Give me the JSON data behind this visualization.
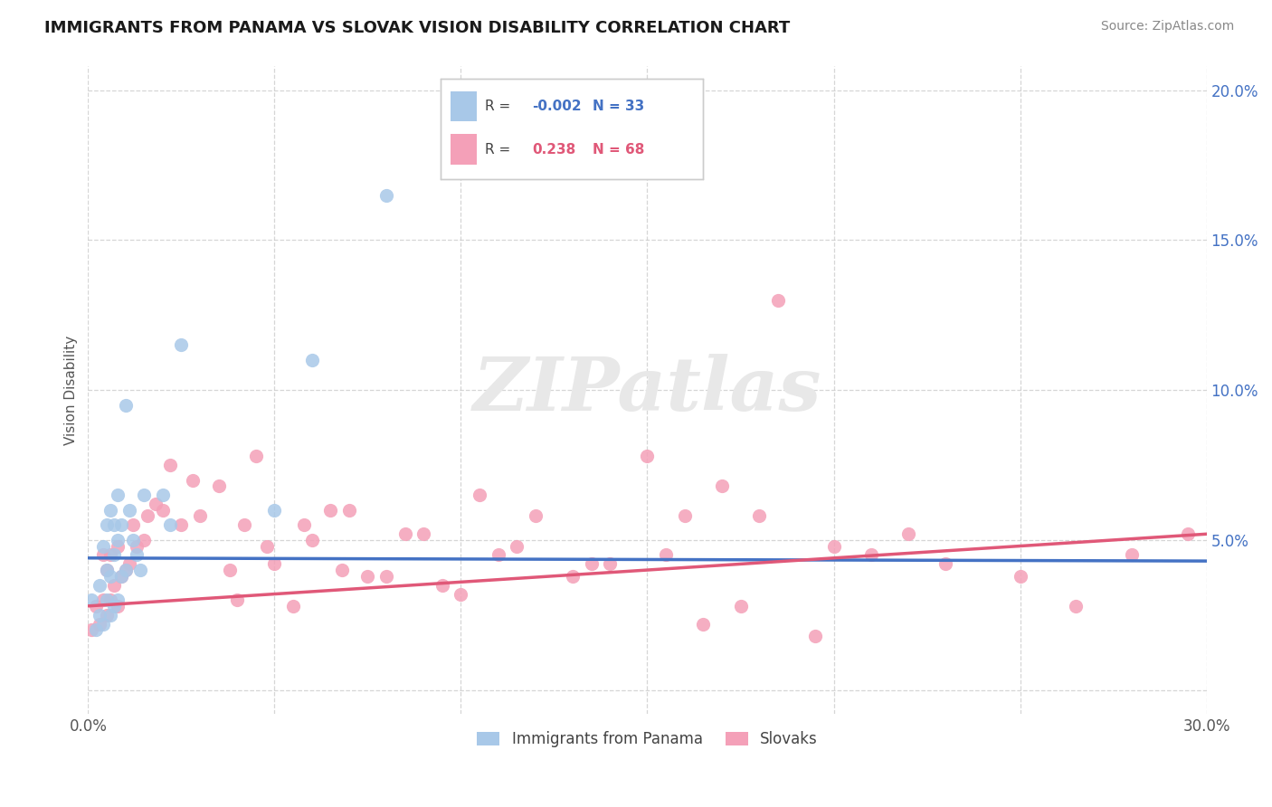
{
  "title": "IMMIGRANTS FROM PANAMA VS SLOVAK VISION DISABILITY CORRELATION CHART",
  "source_text": "Source: ZipAtlas.com",
  "ylabel_label": "Vision Disability",
  "xmin": 0.0,
  "xmax": 0.3,
  "ymin": -0.008,
  "ymax": 0.208,
  "x_ticks": [
    0.0,
    0.05,
    0.1,
    0.15,
    0.2,
    0.25,
    0.3
  ],
  "y_ticks": [
    0.0,
    0.05,
    0.1,
    0.15,
    0.2
  ],
  "legend_R1": "-0.002",
  "legend_N1": "33",
  "legend_R2": "0.238",
  "legend_N2": "68",
  "blue_color": "#a8c8e8",
  "pink_color": "#f4a0b8",
  "blue_line_color": "#4472c4",
  "pink_line_color": "#e05878",
  "blue_line_y0": 0.044,
  "blue_line_y1": 0.043,
  "pink_line_y0": 0.028,
  "pink_line_y1": 0.052,
  "panama_points_x": [
    0.001,
    0.002,
    0.003,
    0.003,
    0.004,
    0.004,
    0.005,
    0.005,
    0.005,
    0.006,
    0.006,
    0.006,
    0.007,
    0.007,
    0.007,
    0.008,
    0.008,
    0.008,
    0.009,
    0.009,
    0.01,
    0.01,
    0.011,
    0.012,
    0.013,
    0.014,
    0.015,
    0.02,
    0.022,
    0.025,
    0.05,
    0.06,
    0.08
  ],
  "panama_points_y": [
    0.03,
    0.02,
    0.025,
    0.035,
    0.022,
    0.048,
    0.03,
    0.04,
    0.055,
    0.025,
    0.038,
    0.06,
    0.028,
    0.045,
    0.055,
    0.03,
    0.05,
    0.065,
    0.038,
    0.055,
    0.04,
    0.095,
    0.06,
    0.05,
    0.045,
    0.04,
    0.065,
    0.065,
    0.055,
    0.115,
    0.06,
    0.11,
    0.165
  ],
  "slovak_points_x": [
    0.001,
    0.002,
    0.003,
    0.004,
    0.004,
    0.005,
    0.005,
    0.006,
    0.006,
    0.007,
    0.008,
    0.008,
    0.009,
    0.01,
    0.011,
    0.012,
    0.013,
    0.015,
    0.016,
    0.018,
    0.02,
    0.022,
    0.025,
    0.028,
    0.03,
    0.035,
    0.038,
    0.04,
    0.042,
    0.045,
    0.048,
    0.05,
    0.055,
    0.058,
    0.06,
    0.065,
    0.068,
    0.07,
    0.075,
    0.08,
    0.085,
    0.09,
    0.095,
    0.1,
    0.105,
    0.11,
    0.115,
    0.12,
    0.13,
    0.135,
    0.14,
    0.15,
    0.155,
    0.16,
    0.165,
    0.17,
    0.175,
    0.18,
    0.185,
    0.195,
    0.2,
    0.21,
    0.22,
    0.23,
    0.25,
    0.265,
    0.28,
    0.295
  ],
  "slovak_points_y": [
    0.02,
    0.028,
    0.022,
    0.03,
    0.045,
    0.025,
    0.04,
    0.03,
    0.045,
    0.035,
    0.028,
    0.048,
    0.038,
    0.04,
    0.042,
    0.055,
    0.048,
    0.05,
    0.058,
    0.062,
    0.06,
    0.075,
    0.055,
    0.07,
    0.058,
    0.068,
    0.04,
    0.03,
    0.055,
    0.078,
    0.048,
    0.042,
    0.028,
    0.055,
    0.05,
    0.06,
    0.04,
    0.06,
    0.038,
    0.038,
    0.052,
    0.052,
    0.035,
    0.032,
    0.065,
    0.045,
    0.048,
    0.058,
    0.038,
    0.042,
    0.042,
    0.078,
    0.045,
    0.058,
    0.022,
    0.068,
    0.028,
    0.058,
    0.13,
    0.018,
    0.048,
    0.045,
    0.052,
    0.042,
    0.038,
    0.028,
    0.045,
    0.052
  ],
  "background_color": "#ffffff",
  "grid_color": "#cccccc",
  "watermark_text": "ZIPatlas"
}
